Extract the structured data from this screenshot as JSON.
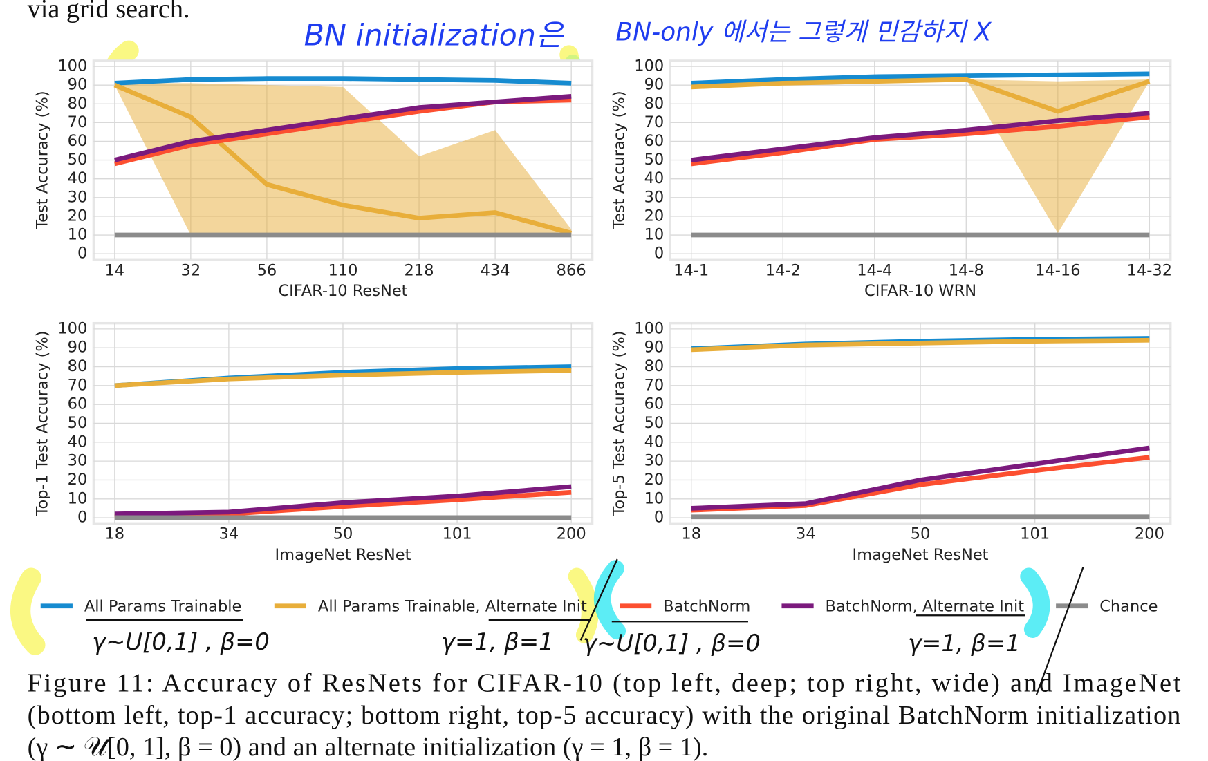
{
  "header_text": "via grid search.",
  "annotations": {
    "top": [
      "BN initialization은",
      "BN-only 에서는 그렇게 민감하지 X"
    ],
    "legend_notes": [
      "γ∼U[0,1] , β=0",
      "γ=1, β=1",
      "γ∼U[0,1] , β=0",
      "γ=1, β=1"
    ]
  },
  "chart_data": [
    {
      "type": "line",
      "x_label": "CIFAR-10 ResNet",
      "y_label": "Test Accuracy (%)",
      "categories": [
        "14",
        "32",
        "56",
        "110",
        "218",
        "434",
        "866"
      ],
      "ylim": [
        -3,
        103
      ],
      "yticks": [
        0,
        10,
        20,
        30,
        40,
        50,
        60,
        70,
        80,
        90,
        100
      ],
      "grid": true,
      "band": {
        "color": "#e8ae3a",
        "upper": [
          91,
          91,
          90,
          89,
          52,
          66,
          13
        ],
        "lower": [
          90,
          10,
          10,
          10,
          10,
          10,
          10
        ]
      },
      "series": [
        {
          "name": "All Params Trainable",
          "color": "#168bd0",
          "values": [
            91,
            93,
            93.5,
            93.5,
            93,
            92.5,
            91
          ]
        },
        {
          "name": "All Params Trainable, Alternate Init",
          "color": "#e8ae3a",
          "values": [
            90,
            73,
            37,
            26,
            19,
            22,
            11
          ]
        },
        {
          "name": "BatchNorm",
          "color": "#fc4f30",
          "values": [
            48,
            58,
            64,
            70,
            76,
            81,
            82
          ]
        },
        {
          "name": "BatchNorm, Alternate Init",
          "color": "#7b1a7d",
          "values": [
            50,
            60,
            66,
            72,
            78,
            81,
            84
          ]
        },
        {
          "name": "Chance",
          "color": "#8b8b8b",
          "values": [
            10,
            10,
            10,
            10,
            10,
            10,
            10
          ]
        }
      ]
    },
    {
      "type": "line",
      "x_label": "CIFAR-10 WRN",
      "y_label": "Test Accuracy (%)",
      "categories": [
        "14-1",
        "14-2",
        "14-4",
        "14-8",
        "14-16",
        "14-32"
      ],
      "ylim": [
        -3,
        103
      ],
      "yticks": [
        0,
        10,
        20,
        30,
        40,
        50,
        60,
        70,
        80,
        90,
        100
      ],
      "grid": true,
      "band": {
        "color": "#e8ae3a",
        "upper": [
          90,
          92,
          93,
          93,
          92,
          93
        ],
        "lower": [
          89,
          91,
          92,
          93,
          11,
          92
        ]
      },
      "series": [
        {
          "color": "#168bd0",
          "values": [
            91,
            93,
            94.5,
            95,
            95.5,
            96
          ]
        },
        {
          "color": "#e8ae3a",
          "values": [
            89,
            91,
            92,
            93,
            76,
            92
          ]
        },
        {
          "color": "#fc4f30",
          "values": [
            48,
            54,
            61,
            64,
            68,
            73
          ]
        },
        {
          "color": "#7b1a7d",
          "values": [
            50,
            56,
            62,
            66,
            71,
            75
          ]
        },
        {
          "color": "#8b8b8b",
          "values": [
            10,
            10,
            10,
            10,
            10,
            10
          ]
        }
      ]
    },
    {
      "type": "line",
      "x_label": "ImageNet ResNet",
      "y_label": "Top-1 Test Accuracy (%)",
      "categories": [
        "18",
        "34",
        "50",
        "101",
        "200"
      ],
      "ylim": [
        -3,
        103
      ],
      "yticks": [
        0,
        10,
        20,
        30,
        40,
        50,
        60,
        70,
        80,
        90,
        100
      ],
      "grid": true,
      "series": [
        {
          "color": "#168bd0",
          "values": [
            70,
            74,
            77,
            79,
            80
          ]
        },
        {
          "color": "#e8ae3a",
          "values": [
            70,
            73.5,
            75.5,
            77,
            78
          ]
        },
        {
          "color": "#fc4f30",
          "values": [
            1,
            2,
            6,
            9.5,
            13.5
          ]
        },
        {
          "color": "#7b1a7d",
          "values": [
            2,
            3,
            8,
            11.5,
            16.5
          ]
        },
        {
          "color": "#8b8b8b",
          "values": [
            0.1,
            0.1,
            0.1,
            0.1,
            0.1
          ]
        }
      ]
    },
    {
      "type": "line",
      "x_label": "ImageNet ResNet",
      "y_label": "Top-5 Test Accuracy (%)",
      "categories": [
        "18",
        "34",
        "50",
        "101",
        "200"
      ],
      "ylim": [
        -3,
        103
      ],
      "yticks": [
        0,
        10,
        20,
        30,
        40,
        50,
        60,
        70,
        80,
        90,
        100
      ],
      "grid": true,
      "series": [
        {
          "color": "#168bd0",
          "values": [
            89.5,
            92,
            93.5,
            94.5,
            95
          ]
        },
        {
          "color": "#e8ae3a",
          "values": [
            89,
            91.5,
            92.5,
            93.5,
            94
          ]
        },
        {
          "color": "#fc4f30",
          "values": [
            4,
            6.5,
            17.5,
            25,
            32
          ]
        },
        {
          "color": "#7b1a7d",
          "values": [
            5,
            7.5,
            20,
            28.5,
            37
          ]
        },
        {
          "color": "#8b8b8b",
          "values": [
            0.5,
            0.5,
            0.5,
            0.5,
            0.5
          ]
        }
      ]
    }
  ],
  "caption": [
    "Figure 11: Accuracy of ResNets for CIFAR-10 (top left, deep; top right, wide) and ImageNet",
    "(bottom left, top-1 accuracy; bottom right, top-5 accuracy) with the original BatchNorm initialization",
    "(γ ∼ 𝒰[0, 1], β = 0) and an alternate initialization (γ = 1, β = 1)."
  ]
}
